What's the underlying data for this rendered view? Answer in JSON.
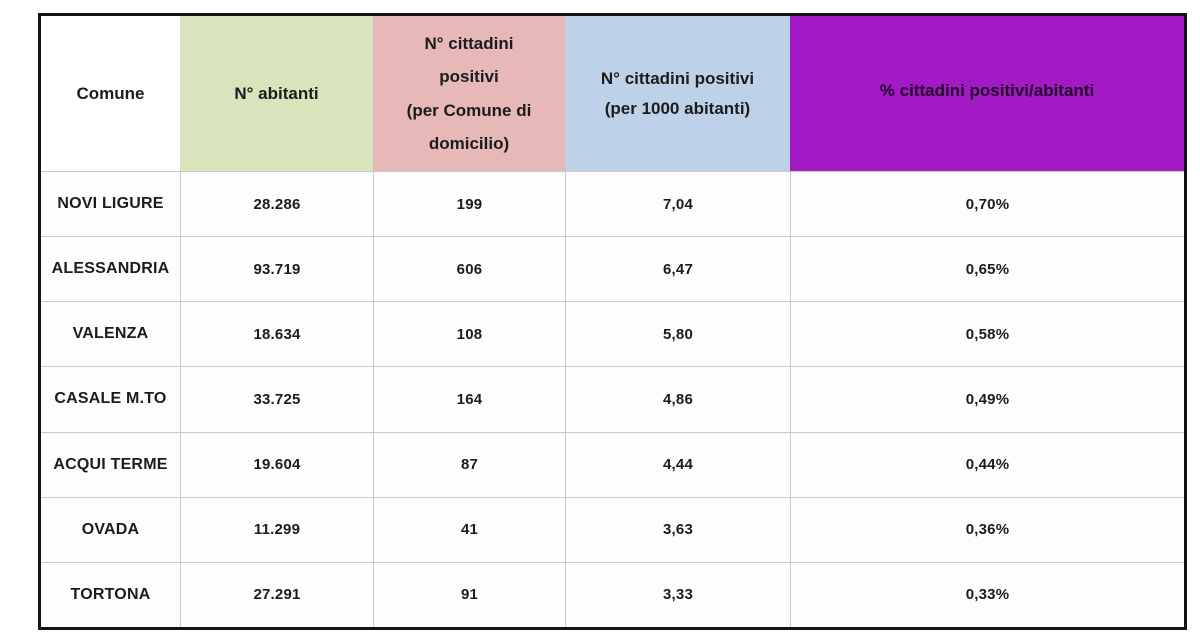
{
  "colors": {
    "col_comune_bg": "#ffffff",
    "col_abitanti_bg": "#d8e4bc",
    "col_positivi_domicilio_bg": "#e6b8b7",
    "col_positivi_per_1000_bg": "#bdd2e9",
    "col_pct_bg": "#a31ac4",
    "outer_border": "#141414",
    "gridline": "#c9c9c9",
    "text": "#1c1c1c"
  },
  "table": {
    "columns": [
      {
        "id": "comune",
        "label": "Comune"
      },
      {
        "id": "abitanti",
        "label": "N° abitanti"
      },
      {
        "id": "positivi_domicilio",
        "label": "N° cittadini\npositivi\n(per Comune di\ndomicilio)"
      },
      {
        "id": "positivi_per_1000",
        "label": "N° cittadini positivi\n(per 1000 abitanti)"
      },
      {
        "id": "pct_positivi",
        "label": "% cittadini positivi/abitanti"
      }
    ],
    "rows": [
      {
        "comune": "NOVI LIGURE",
        "abitanti": "28.286",
        "positivi": "199",
        "per_1000": "7,04",
        "pct": "0,70%"
      },
      {
        "comune": "ALESSANDRIA",
        "abitanti": "93.719",
        "positivi": "606",
        "per_1000": "6,47",
        "pct": "0,65%"
      },
      {
        "comune": "VALENZA",
        "abitanti": "18.634",
        "positivi": "108",
        "per_1000": "5,80",
        "pct": "0,58%"
      },
      {
        "comune": "CASALE M.TO",
        "abitanti": "33.725",
        "positivi": "164",
        "per_1000": "4,86",
        "pct": "0,49%"
      },
      {
        "comune": "ACQUI TERME",
        "abitanti": "19.604",
        "positivi": "87",
        "per_1000": "4,44",
        "pct": "0,44%"
      },
      {
        "comune": "OVADA",
        "abitanti": "11.299",
        "positivi": "41",
        "per_1000": "3,63",
        "pct": "0,36%"
      },
      {
        "comune": "TORTONA",
        "abitanti": "27.291",
        "positivi": "91",
        "per_1000": "3,33",
        "pct": "0,33%"
      }
    ]
  },
  "chart_data": {
    "type": "table",
    "title": "",
    "columns": [
      "Comune",
      "N° abitanti",
      "N° cittadini positivi (per Comune di domicilio)",
      "N° cittadini positivi (per 1000 abitanti)",
      "% cittadini positivi/abitanti"
    ],
    "rows": [
      [
        "NOVI LIGURE",
        28286,
        199,
        7.04,
        "0,70%"
      ],
      [
        "ALESSANDRIA",
        93719,
        606,
        6.47,
        "0,65%"
      ],
      [
        "VALENZA",
        18634,
        108,
        5.8,
        "0,58%"
      ],
      [
        "CASALE M.TO",
        33725,
        164,
        4.86,
        "0,49%"
      ],
      [
        "ACQUI TERME",
        19604,
        87,
        4.44,
        "0,44%"
      ],
      [
        "OVADA",
        11299,
        41,
        3.63,
        "0,36%"
      ],
      [
        "TORTONA",
        27291,
        91,
        3.33,
        "0,33%"
      ]
    ]
  }
}
